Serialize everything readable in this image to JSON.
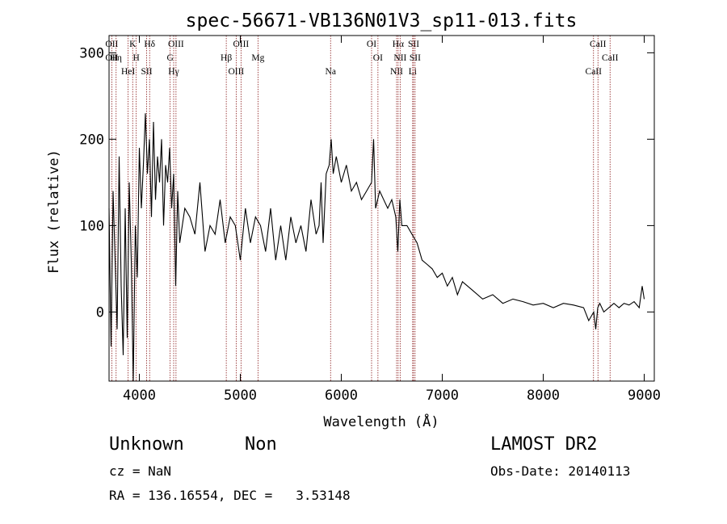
{
  "chart_data": {
    "type": "line",
    "title": "spec-56671-VB136N01V3_sp11-013.fits",
    "xlabel": "Wavelength (Å)",
    "ylabel": "Flux (relative)",
    "xlim": [
      3700,
      9100
    ],
    "ylim": [
      -80,
      320
    ],
    "xticks": [
      4000,
      5000,
      6000,
      7000,
      8000,
      9000
    ],
    "yticks": [
      0,
      100,
      200,
      300
    ],
    "grid": false,
    "series": [
      {
        "x": [
          3700,
          3720,
          3740,
          3760,
          3780,
          3800,
          3820,
          3840,
          3860,
          3880,
          3900,
          3920,
          3940,
          3960,
          3980,
          4000,
          4020,
          4040,
          4060,
          4080,
          4100,
          4120,
          4140,
          4160,
          4180,
          4200,
          4220,
          4240,
          4260,
          4280,
          4300,
          4320,
          4340,
          4360,
          4380,
          4400,
          4450,
          4500,
          4550,
          4600,
          4650,
          4700,
          4750,
          4800,
          4850,
          4900,
          4950,
          5000,
          5050,
          5100,
          5150,
          5200,
          5250,
          5300,
          5350,
          5400,
          5450,
          5500,
          5550,
          5600,
          5650,
          5700,
          5750,
          5780,
          5800,
          5820,
          5850,
          5880,
          5900,
          5920,
          5950,
          6000,
          6050,
          6100,
          6150,
          6200,
          6250,
          6300,
          6320,
          6340,
          6380,
          6420,
          6460,
          6500,
          6540,
          6560,
          6580,
          6600,
          6650,
          6700,
          6750,
          6800,
          6850,
          6900,
          6950,
          7000,
          7050,
          7100,
          7150,
          7200,
          7300,
          7400,
          7500,
          7600,
          7700,
          7800,
          7900,
          8000,
          8100,
          8200,
          8300,
          8400,
          8450,
          8500,
          8520,
          8540,
          8560,
          8600,
          8650,
          8700,
          8750,
          8800,
          8850,
          8900,
          8950,
          8980,
          9000
        ],
        "values": [
          120,
          -40,
          140,
          60,
          -20,
          180,
          30,
          -50,
          120,
          -30,
          150,
          60,
          -80,
          100,
          40,
          190,
          120,
          170,
          230,
          160,
          200,
          110,
          220,
          130,
          180,
          150,
          200,
          100,
          170,
          150,
          190,
          120,
          160,
          30,
          140,
          80,
          120,
          110,
          90,
          150,
          70,
          100,
          90,
          130,
          80,
          110,
          100,
          60,
          120,
          80,
          110,
          100,
          70,
          120,
          60,
          100,
          60,
          110,
          80,
          100,
          70,
          130,
          90,
          100,
          150,
          80,
          160,
          170,
          200,
          160,
          180,
          150,
          170,
          140,
          150,
          130,
          140,
          150,
          200,
          120,
          140,
          130,
          120,
          130,
          110,
          70,
          130,
          100,
          100,
          90,
          80,
          60,
          55,
          50,
          40,
          45,
          30,
          40,
          20,
          35,
          25,
          15,
          20,
          10,
          15,
          12,
          8,
          10,
          5,
          10,
          8,
          5,
          -10,
          0,
          -20,
          5,
          10,
          0,
          5,
          10,
          5,
          10,
          8,
          12,
          5,
          30,
          15
        ]
      }
    ],
    "line_markers": [
      {
        "wave": 3727,
        "labels": [
          "OII",
          "OII"
        ]
      },
      {
        "wave": 3770,
        "labels": [
          "Hη"
        ]
      },
      {
        "wave": 3889,
        "labels": [
          "HeI"
        ]
      },
      {
        "wave": 3934,
        "labels": [
          "K"
        ]
      },
      {
        "wave": 3969,
        "labels": [
          "H"
        ]
      },
      {
        "wave": 4072,
        "labels": [
          "SII"
        ]
      },
      {
        "wave": 4102,
        "labels": [
          "Hδ"
        ]
      },
      {
        "wave": 4305,
        "labels": [
          "G"
        ]
      },
      {
        "wave": 4340,
        "labels": [
          "Hγ"
        ]
      },
      {
        "wave": 4363,
        "labels": [
          "OIII"
        ]
      },
      {
        "wave": 4861,
        "labels": [
          "Hβ"
        ]
      },
      {
        "wave": 4959,
        "labels": [
          "OIII"
        ]
      },
      {
        "wave": 5007,
        "labels": [
          "OIII"
        ]
      },
      {
        "wave": 5175,
        "labels": [
          "Mg"
        ]
      },
      {
        "wave": 5894,
        "labels": [
          "Na"
        ]
      },
      {
        "wave": 6300,
        "labels": [
          "OI"
        ]
      },
      {
        "wave": 6363,
        "labels": [
          "OI"
        ]
      },
      {
        "wave": 6548,
        "labels": [
          "NII"
        ]
      },
      {
        "wave": 6563,
        "labels": [
          "Hα"
        ]
      },
      {
        "wave": 6583,
        "labels": [
          "NII"
        ]
      },
      {
        "wave": 6707,
        "labels": [
          "Li"
        ]
      },
      {
        "wave": 6716,
        "labels": [
          "SII"
        ]
      },
      {
        "wave": 6731,
        "labels": [
          "SII"
        ]
      },
      {
        "wave": 8498,
        "labels": [
          "CaII"
        ]
      },
      {
        "wave": 8542,
        "labels": [
          "CaII"
        ]
      },
      {
        "wave": 8662,
        "labels": [
          "CaII"
        ]
      }
    ]
  },
  "info": {
    "class": "Unknown",
    "subclass": "Non",
    "survey": "LAMOST DR2",
    "cz": "cz = NaN",
    "obs_date": "Obs-Date: 20140113",
    "coords": "RA = 136.16554, DEC =   3.53148"
  }
}
